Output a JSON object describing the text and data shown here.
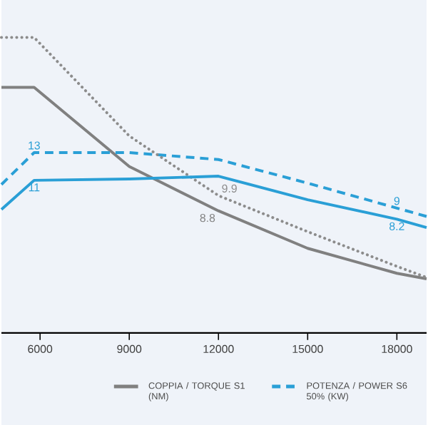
{
  "chart_data": {
    "type": "line",
    "xlim": [
      4700,
      19000
    ],
    "xticks": [
      6000,
      9000,
      12000,
      15000,
      18000
    ],
    "ylim": [
      0,
      24
    ],
    "legend": "bottom",
    "series": [
      {
        "name": "COPPIA / TORQUE S1 (NM)",
        "color": "#808080",
        "line_style": "solid",
        "x": [
          4700,
          5800,
          9000,
          12000,
          15000,
          18000,
          19000
        ],
        "values": [
          17.7,
          17.7,
          12.0,
          8.8,
          6.1,
          4.3,
          3.9
        ],
        "value_labels": [
          null,
          null,
          null,
          "8.8",
          null,
          null,
          null
        ]
      },
      {
        "name": "POTENZA / POWER S6 50% (KW)",
        "color": "#2a9fd6",
        "line_style": "dashed",
        "x": [
          4700,
          5800,
          9000,
          12000,
          15000,
          18000,
          19000
        ],
        "values": [
          10.7,
          13,
          13,
          12.5,
          10.8,
          9,
          8.4
        ],
        "value_labels": [
          null,
          "13",
          null,
          null,
          null,
          "9",
          null
        ]
      },
      {
        "color": "#8c8c8c",
        "line_style": "dotted",
        "x": [
          4700,
          5800,
          9000,
          12000,
          15000,
          18000,
          19000
        ],
        "values": [
          21.3,
          21.3,
          14.2,
          9.9,
          7.3,
          4.8,
          4.0
        ],
        "value_labels": [
          null,
          null,
          null,
          "9.9",
          null,
          null,
          null
        ]
      },
      {
        "color": "#2a9fd6",
        "line_style": "solid",
        "x": [
          4700,
          5800,
          9000,
          12000,
          15000,
          18000,
          19000
        ],
        "values": [
          8.9,
          11,
          11.1,
          11.3,
          9.6,
          8.2,
          7.6
        ],
        "value_labels": [
          null,
          "11",
          null,
          null,
          null,
          "8.2",
          null
        ]
      }
    ]
  }
}
